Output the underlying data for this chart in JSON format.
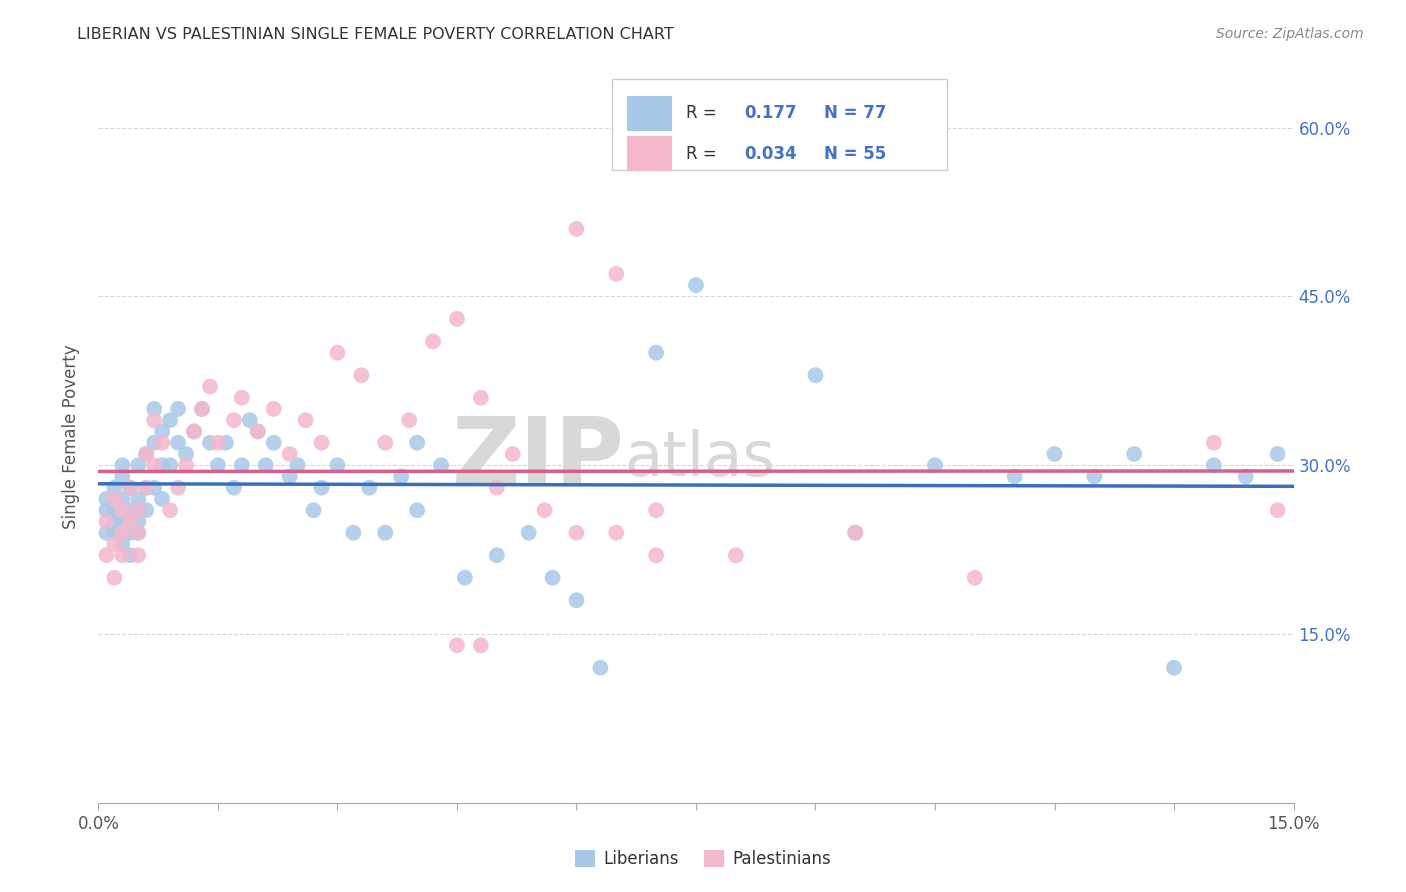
{
  "title": "LIBERIAN VS PALESTINIAN SINGLE FEMALE POVERTY CORRELATION CHART",
  "source": "Source: ZipAtlas.com",
  "ylabel": "Single Female Poverty",
  "ylabel_right_ticks": [
    "60.0%",
    "45.0%",
    "30.0%",
    "15.0%"
  ],
  "ylabel_right_vals": [
    0.6,
    0.45,
    0.3,
    0.15
  ],
  "x_min": 0.0,
  "x_max": 0.15,
  "y_min": 0.0,
  "y_max": 0.65,
  "liberian_R": 0.177,
  "liberian_N": 77,
  "palestinian_R": 0.034,
  "palestinian_N": 55,
  "liberian_color": "#a8c8e8",
  "liberian_line_color": "#3a6fbd",
  "palestinian_color": "#f4b8cc",
  "palestinian_line_color": "#d95f8a",
  "background_color": "#ffffff",
  "watermark_color": "#d8d8d8",
  "liberian_x": [
    0.001,
    0.001,
    0.001,
    0.002,
    0.002,
    0.002,
    0.002,
    0.003,
    0.003,
    0.003,
    0.003,
    0.003,
    0.004,
    0.004,
    0.004,
    0.004,
    0.005,
    0.005,
    0.005,
    0.005,
    0.005,
    0.006,
    0.006,
    0.006,
    0.007,
    0.007,
    0.007,
    0.008,
    0.008,
    0.008,
    0.009,
    0.009,
    0.01,
    0.01,
    0.011,
    0.012,
    0.013,
    0.014,
    0.015,
    0.016,
    0.017,
    0.018,
    0.019,
    0.02,
    0.021,
    0.022,
    0.024,
    0.025,
    0.027,
    0.028,
    0.03,
    0.032,
    0.034,
    0.036,
    0.038,
    0.04,
    0.043,
    0.046,
    0.05,
    0.054,
    0.057,
    0.06,
    0.063,
    0.04,
    0.07,
    0.075,
    0.09,
    0.095,
    0.105,
    0.115,
    0.12,
    0.125,
    0.13,
    0.135,
    0.14,
    0.144,
    0.148
  ],
  "liberian_y": [
    0.26,
    0.27,
    0.24,
    0.25,
    0.26,
    0.24,
    0.28,
    0.25,
    0.23,
    0.27,
    0.29,
    0.3,
    0.26,
    0.24,
    0.28,
    0.22,
    0.27,
    0.25,
    0.3,
    0.24,
    0.26,
    0.31,
    0.28,
    0.26,
    0.35,
    0.32,
    0.28,
    0.3,
    0.33,
    0.27,
    0.34,
    0.3,
    0.35,
    0.32,
    0.31,
    0.33,
    0.35,
    0.32,
    0.3,
    0.32,
    0.28,
    0.3,
    0.34,
    0.33,
    0.3,
    0.32,
    0.29,
    0.3,
    0.26,
    0.28,
    0.3,
    0.24,
    0.28,
    0.24,
    0.29,
    0.26,
    0.3,
    0.2,
    0.22,
    0.24,
    0.2,
    0.18,
    0.12,
    0.32,
    0.4,
    0.46,
    0.38,
    0.24,
    0.3,
    0.29,
    0.31,
    0.29,
    0.31,
    0.12,
    0.3,
    0.29,
    0.31
  ],
  "palestinian_x": [
    0.001,
    0.001,
    0.002,
    0.002,
    0.002,
    0.003,
    0.003,
    0.003,
    0.004,
    0.004,
    0.005,
    0.005,
    0.005,
    0.006,
    0.006,
    0.007,
    0.007,
    0.008,
    0.009,
    0.01,
    0.011,
    0.012,
    0.013,
    0.014,
    0.015,
    0.017,
    0.018,
    0.02,
    0.022,
    0.024,
    0.026,
    0.028,
    0.03,
    0.033,
    0.036,
    0.039,
    0.042,
    0.045,
    0.048,
    0.052,
    0.056,
    0.06,
    0.065,
    0.07,
    0.045,
    0.048,
    0.05,
    0.06,
    0.065,
    0.07,
    0.08,
    0.095,
    0.11,
    0.14,
    0.148
  ],
  "palestinian_y": [
    0.25,
    0.22,
    0.23,
    0.27,
    0.2,
    0.24,
    0.26,
    0.22,
    0.28,
    0.25,
    0.26,
    0.24,
    0.22,
    0.31,
    0.28,
    0.34,
    0.3,
    0.32,
    0.26,
    0.28,
    0.3,
    0.33,
    0.35,
    0.37,
    0.32,
    0.34,
    0.36,
    0.33,
    0.35,
    0.31,
    0.34,
    0.32,
    0.4,
    0.38,
    0.32,
    0.34,
    0.41,
    0.43,
    0.36,
    0.31,
    0.26,
    0.51,
    0.47,
    0.26,
    0.14,
    0.14,
    0.28,
    0.24,
    0.24,
    0.22,
    0.22,
    0.24,
    0.2,
    0.32,
    0.26
  ]
}
